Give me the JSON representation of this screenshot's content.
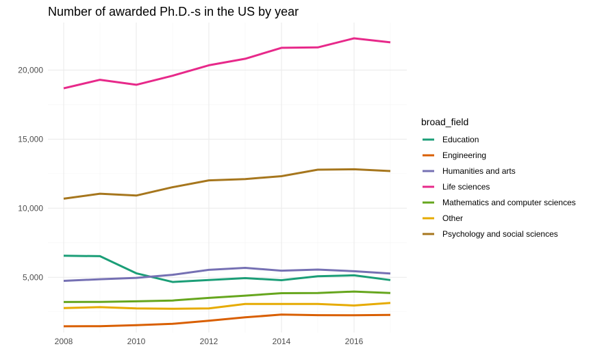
{
  "chart_data": {
    "type": "line",
    "title": "Number of awarded Ph.D.-s in the US by year",
    "xlabel": "",
    "ylabel": "",
    "legend_title": "broad_field",
    "legend_position": "right",
    "grid": true,
    "xlim": [
      2008,
      2017
    ],
    "ylim": [
      1150,
      22400
    ],
    "x_ticks": [
      2008,
      2010,
      2012,
      2014,
      2016
    ],
    "x_tick_labels": [
      "2008",
      "2010",
      "2012",
      "2014",
      "2016"
    ],
    "y_ticks": [
      5000,
      10000,
      15000,
      20000
    ],
    "y_tick_labels": [
      "5,000",
      "10,000",
      "15,000",
      "20,000"
    ],
    "x": [
      2008,
      2009,
      2010,
      2011,
      2012,
      2013,
      2014,
      2015,
      2016,
      2017
    ],
    "series": [
      {
        "name": "Education",
        "color": "#1b9e77",
        "values": [
          6560,
          6530,
          5290,
          4660,
          4800,
          4940,
          4790,
          5080,
          5140,
          4800
        ]
      },
      {
        "name": "Engineering",
        "color": "#d95f02",
        "values": [
          1450,
          1460,
          1530,
          1630,
          1860,
          2100,
          2300,
          2260,
          2250,
          2280
        ]
      },
      {
        "name": "Humanities and arts",
        "color": "#7570b3",
        "values": [
          4740,
          4860,
          4960,
          5180,
          5540,
          5680,
          5480,
          5560,
          5440,
          5270
        ]
      },
      {
        "name": "Life sciences",
        "color": "#e7298a",
        "values": [
          18680,
          19300,
          18940,
          19590,
          20350,
          20820,
          21610,
          21640,
          22300,
          22010
        ]
      },
      {
        "name": "Mathematics and computer sciences",
        "color": "#66a61e",
        "values": [
          3210,
          3220,
          3260,
          3320,
          3510,
          3670,
          3850,
          3860,
          3970,
          3860
        ]
      },
      {
        "name": "Other",
        "color": "#e6ab02",
        "values": [
          2770,
          2840,
          2750,
          2720,
          2750,
          3070,
          3070,
          3070,
          2960,
          3140
        ]
      },
      {
        "name": "Psychology and social sciences",
        "color": "#a6761d",
        "values": [
          10690,
          11050,
          10920,
          11520,
          12020,
          12110,
          12320,
          12790,
          12820,
          12690
        ]
      }
    ]
  }
}
